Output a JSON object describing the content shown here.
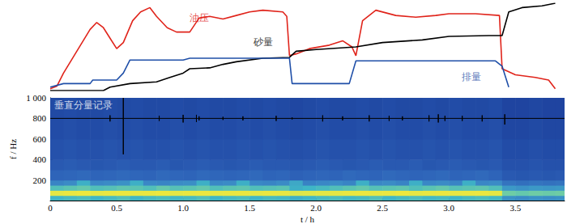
{
  "chart_data": [
    {
      "type": "line",
      "xlim": [
        0,
        3.87
      ],
      "ylim": [
        0,
        100
      ],
      "tick_labels": false,
      "series": [
        {
          "color": "#e0241b",
          "x": [
            0,
            0.05,
            0.1,
            0.2,
            0.3,
            0.35,
            0.4,
            0.45,
            0.5,
            0.55,
            0.62,
            0.68,
            0.75,
            0.8,
            0.88,
            0.95,
            1.05,
            1.12,
            1.2,
            1.3,
            1.4,
            1.5,
            1.6,
            1.75,
            1.78,
            1.8,
            1.85,
            1.95,
            2.1,
            2.2,
            2.27,
            2.3,
            2.35,
            2.45,
            2.6,
            2.75,
            2.9,
            3.0,
            3.2,
            3.38,
            3.4,
            3.5,
            3.65,
            3.75,
            3.8
          ],
          "values": [
            2,
            5,
            20,
            45,
            70,
            78,
            72,
            60,
            48,
            55,
            80,
            90,
            95,
            85,
            72,
            67,
            67,
            83,
            85,
            82,
            86,
            90,
            92,
            90,
            85,
            40,
            42,
            48,
            52,
            57,
            50,
            40,
            80,
            92,
            86,
            84,
            86,
            88,
            88,
            86,
            25,
            18,
            15,
            12,
            2
          ]
        },
        {
          "color": "#000000",
          "x": [
            0,
            0.4,
            0.45,
            0.6,
            0.8,
            0.9,
            1.0,
            1.05,
            1.2,
            1.3,
            1.4,
            1.6,
            1.8,
            1.85,
            2.0,
            2.3,
            2.5,
            2.8,
            3.0,
            3.3,
            3.4,
            3.45,
            3.55,
            3.7,
            3.8
          ],
          "values": [
            0,
            0,
            4,
            8,
            10,
            15,
            20,
            25,
            26,
            30,
            33,
            37,
            38,
            45,
            47,
            50,
            55,
            58,
            62,
            63,
            63,
            90,
            95,
            97,
            100
          ]
        },
        {
          "color": "#1f4fa8",
          "x": [
            0,
            0.1,
            0.3,
            0.32,
            0.5,
            0.55,
            0.6,
            1.0,
            1.05,
            1.8,
            1.82,
            2.25,
            2.3,
            3.35,
            3.4,
            3.45
          ],
          "values": [
            4,
            8,
            8,
            12,
            12,
            20,
            35,
            35,
            37,
            37,
            8,
            8,
            34,
            34,
            28,
            4
          ]
        }
      ],
      "annotations": [
        {
          "text": "油压",
          "x": 1.12,
          "y": 83,
          "color": "#e0241b"
        },
        {
          "text": "砂量",
          "x": 1.6,
          "y": 56,
          "color": "#000000"
        },
        {
          "text": "排量",
          "x": 3.17,
          "y": 16,
          "color": "#1f4fa8"
        }
      ]
    },
    {
      "type": "spectrogram",
      "xlabel": "t / h",
      "ylabel": "f / Hz",
      "xlim": [
        0,
        3.87
      ],
      "ylim": [
        0,
        1000
      ],
      "xticks": [
        0,
        0.5,
        {
          "value": 1,
          "label": "1.0"
        },
        1.5,
        {
          "value": 2,
          "label": "2.0"
        },
        2.5,
        {
          "value": 3,
          "label": "3.0"
        },
        3.5
      ],
      "yticks": [
        200,
        400,
        600,
        800,
        {
          "value": 1000,
          "label": "1 000"
        }
      ],
      "zlim": [
        0.2,
        1
      ],
      "time_edges": [
        0,
        0.1,
        0.2,
        0.3,
        0.4,
        0.5,
        0.6,
        0.7,
        0.8,
        0.9,
        1.0,
        1.1,
        1.2,
        1.3,
        1.4,
        1.5,
        1.6,
        1.7,
        1.8,
        1.9,
        2.0,
        2.1,
        2.2,
        2.3,
        2.4,
        2.5,
        2.6,
        2.7,
        2.8,
        2.9,
        3.0,
        3.1,
        3.2,
        3.3,
        3.4,
        3.5,
        3.6,
        3.7,
        3.8,
        3.87
      ],
      "freq_edges": [
        0,
        50,
        100,
        150,
        200,
        300,
        400,
        600,
        800,
        1000
      ],
      "cells": [
        [
          0.6,
          0.62,
          0.63,
          0.6,
          0.62,
          0.64,
          0.6,
          0.62,
          0.63,
          0.61,
          0.62,
          0.64,
          0.6,
          0.62,
          0.63,
          0.6,
          0.62,
          0.61,
          0.58,
          0.6,
          0.62,
          0.63,
          0.61,
          0.62,
          0.64,
          0.6,
          0.62,
          0.63,
          0.61,
          0.62,
          0.6,
          0.62,
          0.63,
          0.61,
          0.5,
          0.48,
          0.5,
          0.49,
          0.5
        ],
        [
          0.92,
          0.95,
          0.97,
          0.93,
          0.95,
          0.96,
          0.94,
          0.95,
          0.97,
          0.93,
          0.95,
          0.96,
          0.94,
          0.95,
          0.96,
          0.93,
          0.95,
          0.94,
          0.88,
          0.9,
          0.92,
          0.93,
          0.95,
          0.96,
          0.94,
          0.95,
          0.97,
          0.93,
          0.95,
          0.96,
          0.94,
          0.95,
          0.96,
          0.93,
          0.7,
          0.68,
          0.7,
          0.69,
          0.7
        ],
        [
          0.64,
          0.66,
          0.68,
          0.64,
          0.65,
          0.67,
          0.66,
          0.64,
          0.68,
          0.65,
          0.66,
          0.68,
          0.64,
          0.66,
          0.67,
          0.64,
          0.65,
          0.66,
          0.58,
          0.6,
          0.62,
          0.64,
          0.66,
          0.68,
          0.65,
          0.66,
          0.67,
          0.64,
          0.66,
          0.68,
          0.65,
          0.66,
          0.67,
          0.64,
          0.52,
          0.5,
          0.52,
          0.51,
          0.52
        ],
        [
          0.46,
          0.48,
          0.58,
          0.47,
          0.48,
          0.5,
          0.58,
          0.47,
          0.46,
          0.48,
          0.49,
          0.58,
          0.47,
          0.48,
          0.58,
          0.47,
          0.46,
          0.48,
          0.56,
          0.45,
          0.47,
          0.48,
          0.46,
          0.58,
          0.47,
          0.48,
          0.46,
          0.58,
          0.47,
          0.48,
          0.46,
          0.58,
          0.47,
          0.48,
          0.4,
          0.38,
          0.4,
          0.39,
          0.4
        ],
        [
          0.34,
          0.35,
          0.36,
          0.34,
          0.35,
          0.36,
          0.35,
          0.34,
          0.36,
          0.35,
          0.34,
          0.36,
          0.35,
          0.34,
          0.35,
          0.36,
          0.34,
          0.35,
          0.33,
          0.34,
          0.35,
          0.34,
          0.36,
          0.35,
          0.34,
          0.36,
          0.35,
          0.34,
          0.35,
          0.36,
          0.34,
          0.35,
          0.36,
          0.34,
          0.3,
          0.29,
          0.3,
          0.29,
          0.3
        ],
        [
          0.3,
          0.31,
          0.3,
          0.29,
          0.3,
          0.31,
          0.3,
          0.3,
          0.31,
          0.29,
          0.3,
          0.31,
          0.3,
          0.29,
          0.3,
          0.31,
          0.3,
          0.3,
          0.29,
          0.3,
          0.31,
          0.3,
          0.29,
          0.3,
          0.31,
          0.3,
          0.3,
          0.31,
          0.29,
          0.3,
          0.31,
          0.3,
          0.29,
          0.3,
          0.27,
          0.27,
          0.28,
          0.27,
          0.27
        ],
        [
          0.27,
          0.28,
          0.27,
          0.27,
          0.28,
          0.27,
          0.28,
          0.27,
          0.27,
          0.28,
          0.27,
          0.28,
          0.27,
          0.27,
          0.28,
          0.27,
          0.28,
          0.27,
          0.26,
          0.27,
          0.28,
          0.27,
          0.27,
          0.28,
          0.27,
          0.28,
          0.27,
          0.27,
          0.28,
          0.27,
          0.28,
          0.27,
          0.27,
          0.28,
          0.25,
          0.25,
          0.26,
          0.25,
          0.25
        ],
        [
          0.25,
          0.26,
          0.25,
          0.25,
          0.26,
          0.25,
          0.26,
          0.25,
          0.25,
          0.26,
          0.25,
          0.26,
          0.25,
          0.25,
          0.26,
          0.25,
          0.26,
          0.25,
          0.24,
          0.25,
          0.26,
          0.25,
          0.25,
          0.26,
          0.25,
          0.26,
          0.25,
          0.25,
          0.26,
          0.25,
          0.26,
          0.25,
          0.25,
          0.26,
          0.23,
          0.23,
          0.24,
          0.23,
          0.23
        ],
        [
          0.24,
          0.25,
          0.24,
          0.24,
          0.25,
          0.24,
          0.25,
          0.24,
          0.24,
          0.25,
          0.24,
          0.25,
          0.24,
          0.24,
          0.25,
          0.24,
          0.25,
          0.24,
          0.23,
          0.24,
          0.25,
          0.24,
          0.24,
          0.25,
          0.24,
          0.25,
          0.24,
          0.24,
          0.25,
          0.24,
          0.25,
          0.24,
          0.24,
          0.25,
          0.22,
          0.22,
          0.23,
          0.22,
          0.22
        ]
      ],
      "series": [
        {
          "type": "line",
          "color": "#000000",
          "x": [
            0,
            0.45,
            0.45,
            0.45,
            0.45,
            0.55,
            0.55,
            0.55,
            0.55,
            0.82,
            0.82,
            0.82,
            0.82,
            1.0,
            1.0,
            1.0,
            1.0,
            1.1,
            1.1,
            1.1,
            1.1,
            1.12,
            1.12,
            1.12,
            1.12,
            1.3,
            1.3,
            1.3,
            1.3,
            1.45,
            1.45,
            1.45,
            1.45,
            1.7,
            1.7,
            1.7,
            1.7,
            1.82,
            1.82,
            1.82,
            1.82,
            2.05,
            2.05,
            2.05,
            2.05,
            2.2,
            2.2,
            2.2,
            2.2,
            2.4,
            2.4,
            2.4,
            2.4,
            2.55,
            2.55,
            2.55,
            2.55,
            2.65,
            2.65,
            2.65,
            2.65,
            2.85,
            2.85,
            2.85,
            2.85,
            2.92,
            2.92,
            2.92,
            2.92,
            2.97,
            2.97,
            2.97,
            2.97,
            3.1,
            3.1,
            3.1,
            3.1,
            3.25,
            3.25,
            3.25,
            3.25,
            3.42,
            3.42,
            3.42,
            3.42,
            3.87
          ],
          "values": [
            800,
            800,
            770,
            830,
            800,
            800,
            450,
            1000,
            800,
            800,
            775,
            825,
            800,
            800,
            760,
            835,
            800,
            800,
            765,
            835,
            800,
            800,
            780,
            820,
            800,
            800,
            785,
            815,
            800,
            800,
            780,
            820,
            800,
            800,
            775,
            825,
            800,
            800,
            790,
            810,
            800,
            800,
            770,
            830,
            800,
            800,
            780,
            820,
            800,
            800,
            770,
            830,
            800,
            800,
            775,
            825,
            800,
            800,
            780,
            820,
            800,
            800,
            770,
            830,
            800,
            800,
            760,
            840,
            800,
            800,
            775,
            825,
            800,
            800,
            775,
            825,
            800,
            800,
            770,
            830,
            800,
            800,
            740,
            840,
            800,
            800
          ]
        }
      ],
      "annotations": [
        {
          "text": "垂直分量记录",
          "x": 0.03,
          "y": 930,
          "color": "#ffffff"
        }
      ]
    }
  ]
}
